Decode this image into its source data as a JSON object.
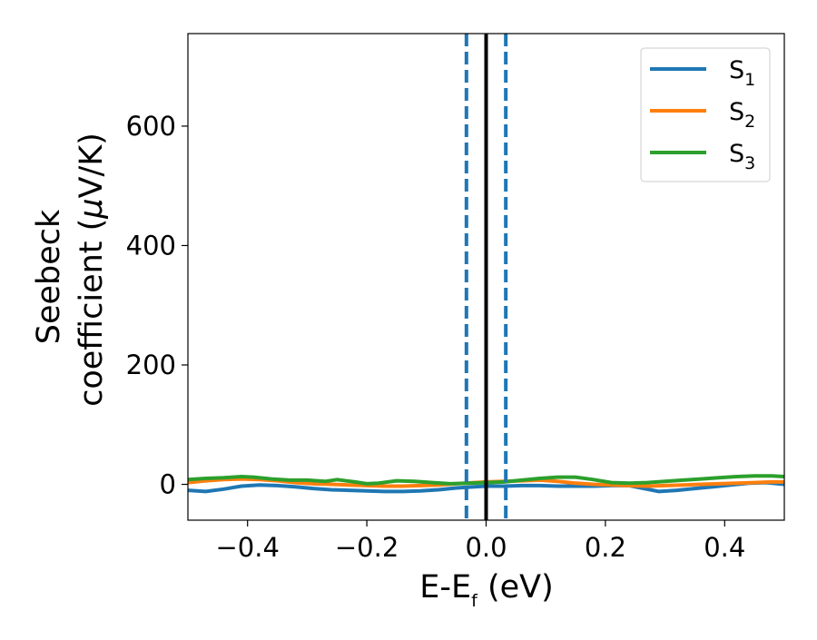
{
  "chart_data": {
    "type": "line",
    "title": "",
    "xlabel": "E-E",
    "xlabel_sub": "f",
    "xlabel_unit": " (eV)",
    "ylabel_line1": "Seebeck",
    "ylabel_line2": "coefficient  (",
    "ylabel_mu": "μ",
    "ylabel_unit": "V/K)",
    "xlim": [
      -0.5,
      0.5
    ],
    "ylim": [
      -60,
      755
    ],
    "xticks": [
      -0.4,
      -0.2,
      0.0,
      0.2,
      0.4
    ],
    "xtick_labels": [
      "−0.4",
      "−0.2",
      "0.0",
      "0.2",
      "0.4"
    ],
    "yticks": [
      0,
      200,
      400,
      600
    ],
    "ytick_labels": [
      "0",
      "200",
      "400",
      "600"
    ],
    "grid": false,
    "legend_position": "top-right",
    "vlines": [
      {
        "x": 0.0,
        "color": "#000000",
        "style": "solid"
      },
      {
        "x": -0.033,
        "color": "#1f77b4",
        "style": "dashed"
      },
      {
        "x": 0.033,
        "color": "#1f77b4",
        "style": "dashed"
      }
    ],
    "series": [
      {
        "name": "S",
        "sub": "1",
        "color": "#1f77b4",
        "x": [
          -0.5,
          -0.47,
          -0.44,
          -0.41,
          -0.38,
          -0.35,
          -0.32,
          -0.29,
          -0.26,
          -0.23,
          -0.2,
          -0.17,
          -0.14,
          -0.11,
          -0.08,
          -0.05,
          -0.02,
          0.0,
          0.03,
          0.06,
          0.09,
          0.12,
          0.15,
          0.18,
          0.21,
          0.24,
          0.26,
          0.29,
          0.32,
          0.35,
          0.38,
          0.41,
          0.44,
          0.47,
          0.5
        ],
        "y": [
          -10,
          -12,
          -8,
          -3,
          -1,
          -2,
          -4,
          -7,
          -9,
          -10,
          -11,
          -12,
          -12,
          -11,
          -9,
          -6,
          -4,
          -3,
          -3,
          -2,
          -2,
          -3,
          -3,
          -3,
          -2,
          -2,
          -6,
          -12,
          -10,
          -7,
          -4,
          -1,
          2,
          3,
          0
        ]
      },
      {
        "name": "S",
        "sub": "2",
        "color": "#ff7f0e",
        "x": [
          -0.5,
          -0.47,
          -0.44,
          -0.41,
          -0.38,
          -0.35,
          -0.32,
          -0.29,
          -0.26,
          -0.23,
          -0.2,
          -0.17,
          -0.14,
          -0.11,
          -0.08,
          -0.05,
          -0.02,
          0.0,
          0.03,
          0.06,
          0.09,
          0.12,
          0.15,
          0.18,
          0.21,
          0.24,
          0.27,
          0.3,
          0.33,
          0.36,
          0.39,
          0.42,
          0.45,
          0.48,
          0.5
        ],
        "y": [
          3,
          6,
          8,
          9,
          8,
          6,
          3,
          1,
          0,
          -1,
          -2,
          -3,
          -3,
          -2,
          -1,
          1,
          3,
          4,
          5,
          6,
          7,
          5,
          2,
          0,
          -1,
          -2,
          -3,
          -2,
          -1,
          0,
          1,
          2,
          3,
          4,
          4
        ]
      },
      {
        "name": "S",
        "sub": "3",
        "color": "#2ca02c",
        "x": [
          -0.5,
          -0.47,
          -0.44,
          -0.41,
          -0.39,
          -0.36,
          -0.33,
          -0.3,
          -0.27,
          -0.25,
          -0.22,
          -0.2,
          -0.18,
          -0.15,
          -0.12,
          -0.09,
          -0.06,
          -0.03,
          0.0,
          0.03,
          0.06,
          0.09,
          0.12,
          0.15,
          0.18,
          0.21,
          0.24,
          0.27,
          0.3,
          0.33,
          0.36,
          0.39,
          0.42,
          0.45,
          0.48,
          0.5
        ],
        "y": [
          8,
          10,
          11,
          13,
          12,
          9,
          7,
          7,
          5,
          8,
          4,
          1,
          2,
          6,
          5,
          3,
          1,
          2,
          3,
          4,
          7,
          10,
          12,
          12,
          8,
          3,
          2,
          3,
          5,
          7,
          9,
          11,
          13,
          14,
          14,
          13
        ]
      }
    ]
  }
}
